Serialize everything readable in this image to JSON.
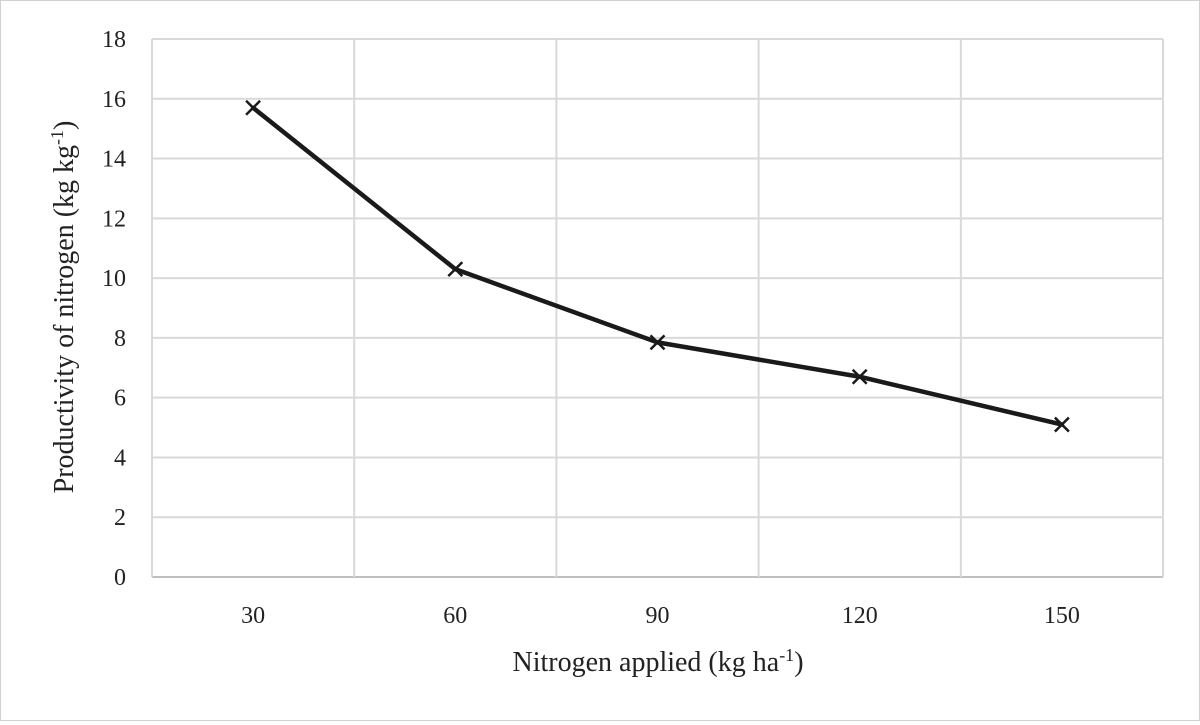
{
  "chart_data": {
    "type": "line",
    "title": "",
    "xlabel": "Nitrogen applied (kg ha",
    "xlabel_sup": "-1",
    "xlabel_suffix": ")",
    "ylabel": "Productivity of nitrogen (kg kg",
    "ylabel_sup": "-1",
    "ylabel_suffix": ")",
    "categories": [
      "30",
      "60",
      "90",
      "120",
      "150"
    ],
    "series": [
      {
        "values": [
          15.7,
          10.3,
          7.85,
          6.7,
          5.1
        ],
        "marker": "x",
        "color": "#1a1a1a"
      }
    ],
    "ylim": [
      0,
      18
    ],
    "yticks": [
      "0",
      "2",
      "4",
      "6",
      "8",
      "10",
      "12",
      "14",
      "16",
      "18"
    ],
    "grid": true,
    "legend": "none"
  },
  "colors": {
    "grid": "#d9d9d9",
    "line": "#1a1a1a",
    "text": "#222222"
  }
}
